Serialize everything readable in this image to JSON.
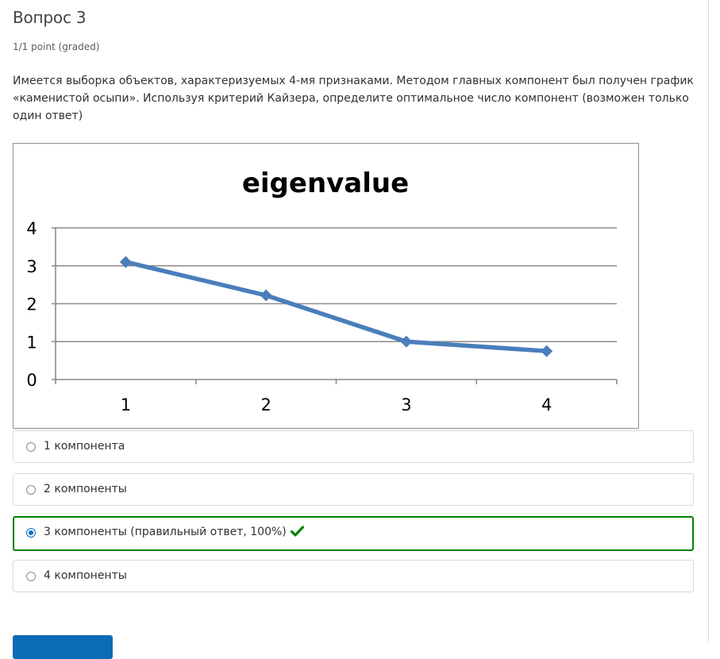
{
  "question": {
    "title": "Вопрос 3",
    "points": "1/1 point (graded)",
    "prompt": "Имеется выборка объектов, характеризуемых 4-мя признаками. Методом главных компонент был получен график «каменистой осыпи». Используя критерий Кайзера, определите оптимальное число компонент (возможен только один ответ)"
  },
  "chart_data": {
    "type": "line",
    "title": "eigenvalue",
    "categories": [
      "1",
      "2",
      "3",
      "4"
    ],
    "values": [
      3.1,
      2.22,
      1.0,
      0.75
    ],
    "y_ticks": [
      "0",
      "1",
      "2",
      "3",
      "4"
    ],
    "ylim": [
      0,
      4
    ],
    "grid": true,
    "legend": "none",
    "line_color": "#4a7ebb"
  },
  "options": [
    {
      "label": "1 компонента",
      "selected": false
    },
    {
      "label": "2 компоненты",
      "selected": false
    },
    {
      "label": "3 компоненты (правильный ответ, 100%)",
      "selected": true,
      "correct": true
    },
    {
      "label": "4 компоненты",
      "selected": false
    }
  ],
  "icons": {
    "correct": "checkmark-icon"
  },
  "colors": {
    "correct": "#008100",
    "accent": "#0a6dc2"
  }
}
